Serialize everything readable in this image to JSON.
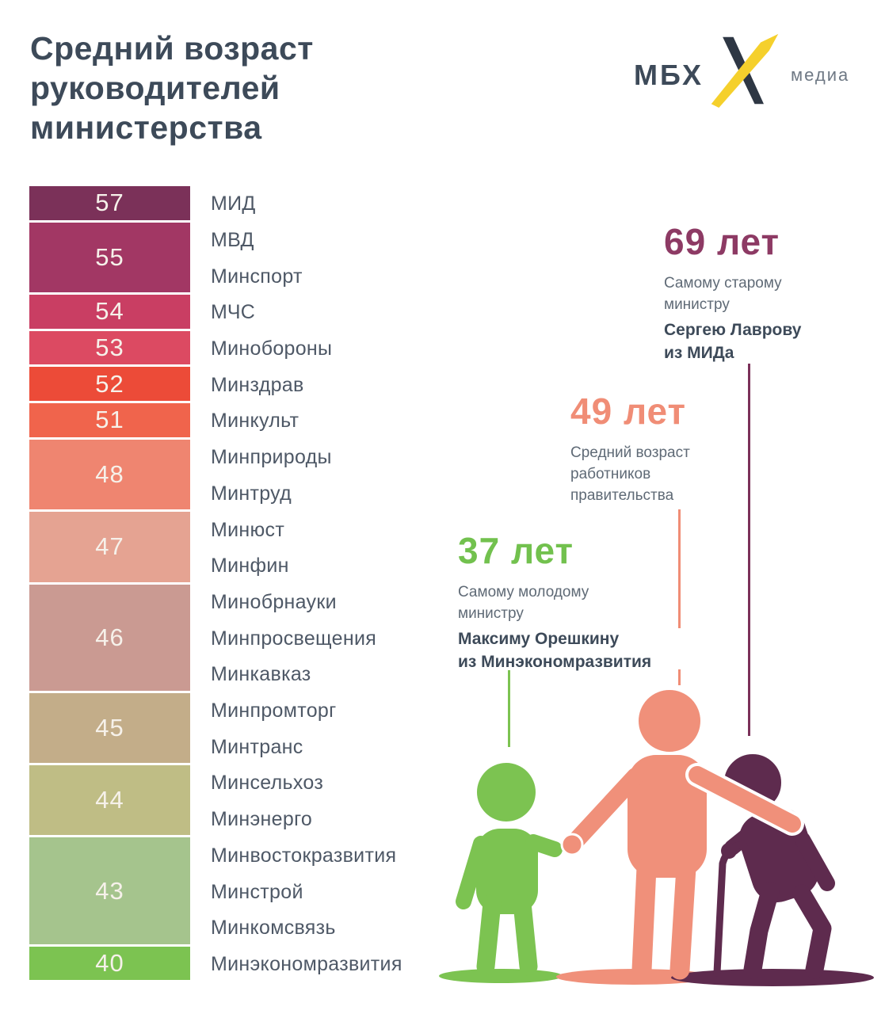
{
  "title": "Средний возраст руководителей министерства",
  "logo": {
    "left": "МБХ",
    "right": "медиа"
  },
  "colors": {
    "title_text": "#3d4a59",
    "gray_text": "#5f6a76",
    "oldest_accent": "#8d3a64",
    "oldest_line": "#7b3159",
    "average_accent": "#f08d76",
    "youngest_accent": "#72c14e",
    "figure_young": "#7cc351",
    "figure_average": "#f0907a",
    "figure_old": "#5e2b4e",
    "logo_yellow": "#f5d02c",
    "logo_dark": "#2e3744"
  },
  "chart_data": {
    "type": "bar",
    "title": "Средний возраст руководителей министерства",
    "unit": "лет",
    "rows": [
      {
        "age": 57,
        "ministries": [
          "МИД"
        ],
        "color": "#7b3159"
      },
      {
        "age": 55,
        "ministries": [
          "МВД",
          "Минспорт"
        ],
        "color": "#a23764"
      },
      {
        "age": 54,
        "ministries": [
          "МЧС"
        ],
        "color": "#c93e63"
      },
      {
        "age": 53,
        "ministries": [
          "Минобороны"
        ],
        "color": "#dc4a62"
      },
      {
        "age": 52,
        "ministries": [
          "Минздрав"
        ],
        "color": "#ec4b38"
      },
      {
        "age": 51,
        "ministries": [
          "Минкульт"
        ],
        "color": "#f0644c"
      },
      {
        "age": 48,
        "ministries": [
          "Минприроды",
          "Минтруд"
        ],
        "color": "#ef8570"
      },
      {
        "age": 47,
        "ministries": [
          "Минюст",
          "Минфин"
        ],
        "color": "#e5a392"
      },
      {
        "age": 46,
        "ministries": [
          "Минобрнауки",
          "Минпросвещения",
          "Минкавказ"
        ],
        "color": "#ca9a92"
      },
      {
        "age": 45,
        "ministries": [
          "Минпромторг",
          "Минтранс"
        ],
        "color": "#c3ad89"
      },
      {
        "age": 44,
        "ministries": [
          "Минсельхоз",
          "Минэнерго"
        ],
        "color": "#bfbd85"
      },
      {
        "age": 43,
        "ministries": [
          "Минвостокразвития",
          "Минстрой",
          "Минкомсвязь"
        ],
        "color": "#a5c48d"
      },
      {
        "age": 40,
        "ministries": [
          "Минэкономразвития"
        ],
        "color": "#7cc351"
      }
    ]
  },
  "callouts": {
    "oldest": {
      "value": "69 лет",
      "line1": "Самому старому",
      "line2": "министру",
      "bold1": "Сергею Лаврову",
      "bold2": "из МИДа"
    },
    "average": {
      "value": "49 лет",
      "line1": "Средний возраст",
      "line2": "работников",
      "line3": "правительства"
    },
    "youngest": {
      "value": "37 лет",
      "line1": "Самому молодому",
      "line2": "министру",
      "bold1": "Максиму Орешкину",
      "bold2": "из Минэкономразвития"
    }
  }
}
